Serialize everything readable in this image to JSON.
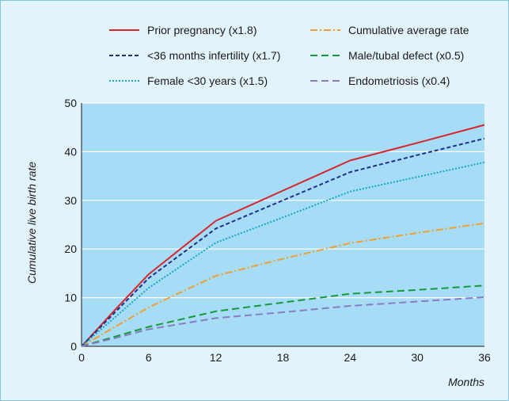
{
  "chart_data": {
    "type": "line",
    "xlabel": "Months",
    "ylabel": "Cumulative live birth rate",
    "xlim": [
      0,
      36
    ],
    "ylim": [
      0,
      50
    ],
    "x_ticks": [
      "0",
      "6",
      "12",
      "18",
      "24",
      "30",
      "36"
    ],
    "y_ticks": [
      "0",
      "10",
      "20",
      "30",
      "40",
      "50"
    ],
    "grid": "horizontal",
    "legend_position": "top",
    "plot_background": "#a6dcf6",
    "series": [
      {
        "name": "Prior pregnancy (x1.8)",
        "color": "#d7262e",
        "dash": "solid",
        "points": [
          [
            0,
            0
          ],
          [
            3,
            7.5
          ],
          [
            6,
            14.8
          ],
          [
            12,
            25.8
          ],
          [
            18,
            32
          ],
          [
            24,
            38.2
          ],
          [
            30,
            41.8
          ],
          [
            36,
            45.5
          ]
        ]
      },
      {
        "name": "Cumulative average rate",
        "color": "#f0a030",
        "dash": "dashdot",
        "points": [
          [
            0,
            0
          ],
          [
            3,
            4
          ],
          [
            6,
            8
          ],
          [
            12,
            14.5
          ],
          [
            18,
            18
          ],
          [
            24,
            21.2
          ],
          [
            30,
            23.3
          ],
          [
            36,
            25.3
          ]
        ]
      },
      {
        "name": "<36 months infertility (x1.7)",
        "color": "#1f2f8a",
        "dash": "dashed",
        "points": [
          [
            0,
            0
          ],
          [
            3,
            7
          ],
          [
            6,
            14
          ],
          [
            12,
            24.2
          ],
          [
            18,
            30
          ],
          [
            24,
            35.8
          ],
          [
            30,
            39.3
          ],
          [
            36,
            42.7
          ]
        ]
      },
      {
        "name": "Male/tubal defect (x0.5)",
        "color": "#159a3c",
        "dash": "longdash",
        "points": [
          [
            0,
            0
          ],
          [
            3,
            2
          ],
          [
            6,
            4
          ],
          [
            12,
            7.2
          ],
          [
            18,
            9
          ],
          [
            24,
            10.8
          ],
          [
            30,
            11.6
          ],
          [
            36,
            12.5
          ]
        ]
      },
      {
        "name": "Female <30 years (x1.5)",
        "color": "#14a8c0",
        "dash": "dotted",
        "points": [
          [
            0,
            0
          ],
          [
            3,
            6
          ],
          [
            6,
            12
          ],
          [
            12,
            21.3
          ],
          [
            18,
            26.5
          ],
          [
            24,
            31.8
          ],
          [
            30,
            34.8
          ],
          [
            36,
            37.8
          ]
        ]
      },
      {
        "name": "Endometriosis (x0.4)",
        "color": "#8a7cc0",
        "dash": "longdash",
        "points": [
          [
            0,
            0
          ],
          [
            3,
            1.7
          ],
          [
            6,
            3.5
          ],
          [
            12,
            5.8
          ],
          [
            18,
            7
          ],
          [
            24,
            8.3
          ],
          [
            30,
            9.2
          ],
          [
            36,
            10.1
          ]
        ]
      }
    ]
  }
}
